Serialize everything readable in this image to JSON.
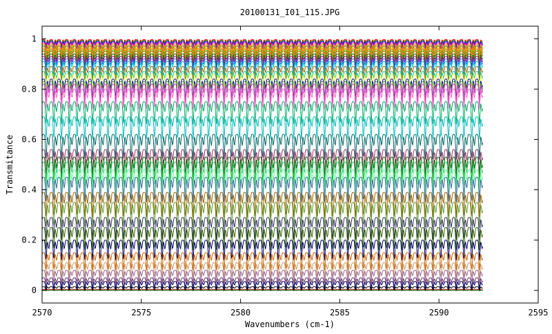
{
  "chart_data": {
    "type": "line",
    "title": "20100131_I01_115.JPG",
    "xlabel": "Wavenumbers (cm-1)",
    "ylabel": "Transmitance",
    "xlim": [
      2570,
      2595
    ],
    "ylim": [
      -0.05,
      1.05
    ],
    "x_ticks": [
      2570,
      2575,
      2580,
      2585,
      2590,
      2595
    ],
    "y_ticks": [
      0,
      0.2,
      0.4,
      0.6,
      0.8,
      1
    ],
    "x_tick_labels": [
      "2570",
      "2575",
      "2580",
      "2585",
      "2590",
      "2595"
    ],
    "y_tick_labels": [
      "0",
      "0.2",
      "0.4",
      "0.6",
      "0.8",
      "1"
    ],
    "x_data_range": [
      2570,
      2592.2
    ],
    "grid": false,
    "legend": "none",
    "absorption_line_spacing_cm1": 0.39,
    "absorption_line_start_cm1": 2570.2,
    "series": [
      {
        "baseline": 0.997,
        "depth": 0.02,
        "color": "#ff0000"
      },
      {
        "baseline": 0.993,
        "depth": 0.025,
        "color": "#00a000"
      },
      {
        "baseline": 0.99,
        "depth": 0.03,
        "color": "#0000ff"
      },
      {
        "baseline": 0.985,
        "depth": 0.03,
        "color": "#ff00ff"
      },
      {
        "baseline": 0.98,
        "depth": 0.035,
        "color": "#ff9900"
      },
      {
        "baseline": 0.975,
        "depth": 0.035,
        "color": "#a0a000"
      },
      {
        "baseline": 0.97,
        "depth": 0.04,
        "color": "#996633"
      },
      {
        "baseline": 0.965,
        "depth": 0.04,
        "color": "#ffcc00"
      },
      {
        "baseline": 0.96,
        "depth": 0.04,
        "color": "#ff6600"
      },
      {
        "baseline": 0.955,
        "depth": 0.045,
        "color": "#33cc33"
      },
      {
        "baseline": 0.95,
        "depth": 0.045,
        "color": "#cc6600"
      },
      {
        "baseline": 0.94,
        "depth": 0.05,
        "color": "#006600"
      },
      {
        "baseline": 0.93,
        "depth": 0.05,
        "color": "#990099"
      },
      {
        "baseline": 0.92,
        "depth": 0.05,
        "color": "#3366ff"
      },
      {
        "baseline": 0.91,
        "depth": 0.055,
        "color": "#00cccc"
      },
      {
        "baseline": 0.89,
        "depth": 0.055,
        "color": "#996600"
      },
      {
        "baseline": 0.87,
        "depth": 0.06,
        "color": "#00cc99"
      },
      {
        "baseline": 0.86,
        "depth": 0.06,
        "color": "#ffff66"
      },
      {
        "baseline": 0.84,
        "depth": 0.08,
        "color": "#000099"
      },
      {
        "baseline": 0.83,
        "depth": 0.08,
        "color": "#669933"
      },
      {
        "baseline": 0.82,
        "depth": 0.08,
        "color": "#cc33cc"
      },
      {
        "baseline": 0.8,
        "depth": 0.08,
        "color": "#ff66cc"
      },
      {
        "baseline": 0.75,
        "depth": 0.09,
        "color": "#00aa66"
      },
      {
        "baseline": 0.69,
        "depth": 0.09,
        "color": "#00bbbb"
      },
      {
        "baseline": 0.62,
        "depth": 0.1,
        "color": "#006666"
      },
      {
        "baseline": 0.56,
        "depth": 0.1,
        "color": "#993366"
      },
      {
        "baseline": 0.53,
        "depth": 0.1,
        "color": "#006600"
      },
      {
        "baseline": 0.51,
        "depth": 0.1,
        "color": "#33cc66"
      },
      {
        "baseline": 0.48,
        "depth": 0.1,
        "color": "#66ff99"
      },
      {
        "baseline": 0.45,
        "depth": 0.1,
        "color": "#336699"
      },
      {
        "baseline": 0.39,
        "depth": 0.1,
        "color": "#996600"
      },
      {
        "baseline": 0.35,
        "depth": 0.1,
        "color": "#669933"
      },
      {
        "baseline": 0.29,
        "depth": 0.09,
        "color": "#333366"
      },
      {
        "baseline": 0.25,
        "depth": 0.09,
        "color": "#336600"
      },
      {
        "baseline": 0.2,
        "depth": 0.08,
        "color": "#000066"
      },
      {
        "baseline": 0.15,
        "depth": 0.07,
        "color": "#cc6600"
      },
      {
        "baseline": 0.11,
        "depth": 0.06,
        "color": "#cc9966"
      },
      {
        "baseline": 0.08,
        "depth": 0.05,
        "color": "#996699"
      },
      {
        "baseline": 0.05,
        "depth": 0.04,
        "color": "#663366"
      },
      {
        "baseline": 0.035,
        "depth": 0.03,
        "color": "#000066"
      },
      {
        "baseline": 0.015,
        "depth": 0.015,
        "color": "#000000"
      },
      {
        "baseline": 0.004,
        "depth": 0.005,
        "color": "#cc0000"
      },
      {
        "baseline": 0.001,
        "depth": 0.002,
        "color": "#006600"
      }
    ]
  }
}
